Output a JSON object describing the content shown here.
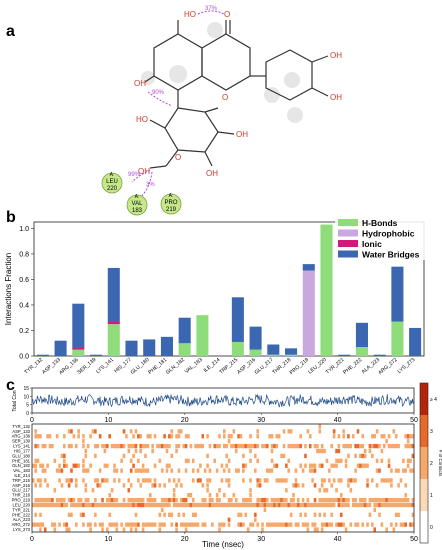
{
  "panel_labels": {
    "a": "a",
    "b": "b",
    "c": "c"
  },
  "molecule": {
    "atoms": {
      "ho_top": "HO",
      "o_top": "O",
      "oh_left": "OH",
      "ring_o": "O",
      "oh_right_top": "OH",
      "oh_right_mid": "OH",
      "ho_sugar": "HO",
      "o_sugar": "O",
      "oh_sugar1": "OH",
      "oh_sugar2": "OH",
      "oh_ch2": "OH"
    },
    "hbond_labels": {
      "intramolecular_top": "37%",
      "intramolecular_left": "90%",
      "to_leu": "99%",
      "to_val": "3%"
    },
    "residues": [
      {
        "chain": "A:",
        "name": "LEU",
        "num": "220"
      },
      {
        "chain": "A:",
        "name": "VAL",
        "num": "183"
      },
      {
        "chain": "A:",
        "name": "PRO",
        "num": "219"
      }
    ]
  },
  "chart_data": [
    {
      "type": "bar",
      "stacked": true,
      "ylabel": "Interactions Fraction",
      "ylim": [
        0,
        1.05
      ],
      "yticks": [
        "0.0",
        "0.2",
        "0.4",
        "0.6",
        "0.8",
        "1.0"
      ],
      "categories": [
        "TYR_132",
        "ASP_133",
        "ARG_136",
        "SER_139",
        "LYS_141",
        "HIS_177",
        "GLU_180",
        "PHE_181",
        "GLN_182",
        "VAL_183",
        "ILE_214",
        "TRP_215",
        "ASP_216",
        "GLU_217",
        "THR_218",
        "PRO_219",
        "LEU_220",
        "TYR_221",
        "PHE_222",
        "ALA_223",
        "ARG_272",
        "LYS_273"
      ],
      "legend_position": "top-right",
      "series": [
        {
          "name": "H-Bonds",
          "color": "#8fdc7a",
          "values": [
            0,
            0,
            0.05,
            0,
            0.25,
            0,
            0,
            0,
            0.1,
            0.32,
            0,
            0.11,
            0.05,
            0.01,
            0.01,
            0,
            1.03,
            0,
            0.07,
            0,
            0.27,
            0
          ]
        },
        {
          "name": "Hydrophobic",
          "color": "#c9a8e0",
          "values": [
            0,
            0,
            0,
            0,
            0,
            0,
            0,
            0,
            0,
            0,
            0,
            0,
            0,
            0,
            0,
            0.67,
            0,
            0,
            0,
            0,
            0,
            0
          ]
        },
        {
          "name": "Ionic",
          "color": "#d6187a",
          "values": [
            0,
            0,
            0.02,
            0,
            0.02,
            0,
            0,
            0,
            0,
            0,
            0,
            0,
            0,
            0,
            0,
            0,
            0,
            0,
            0,
            0,
            0,
            0
          ]
        },
        {
          "name": "Water Bridges",
          "color": "#3b66b0",
          "values": [
            0.01,
            0.12,
            0.34,
            0.01,
            0.42,
            0.12,
            0.13,
            0.15,
            0.2,
            0,
            0,
            0.35,
            0.18,
            0.08,
            0.05,
            0.05,
            0,
            0.01,
            0.19,
            0.01,
            0.43,
            0.22
          ]
        }
      ]
    },
    {
      "type": "line",
      "ylabel": "Total Con",
      "xlim": [
        0,
        50
      ],
      "ylim": [
        0,
        15
      ],
      "yticks": [
        "0",
        "5",
        "10",
        "15"
      ],
      "xticks": [
        "0",
        "10",
        "20",
        "30",
        "40",
        "50"
      ],
      "mean_level": 7.5,
      "color": "#1f4a86"
    },
    {
      "type": "heatmap",
      "xlabel": "Time (nsec)",
      "xticks": [
        "0",
        "10",
        "20",
        "30",
        "40",
        "50"
      ],
      "rows": [
        "TYR_132",
        "ASP_133",
        "ARG_136",
        "SER_139",
        "LYS_141",
        "HIS_177",
        "GLU_180",
        "PHE_181",
        "GLN_182",
        "VAL_183",
        "ILE_214",
        "TRP_215",
        "ASP_216",
        "GLU_217",
        "THR_218",
        "PRO_219",
        "LEU_220",
        "TYR_221",
        "PHE_222",
        "ALA_223",
        "ARG_272",
        "LYS_273"
      ],
      "row_occupancy": [
        0.02,
        0.13,
        0.37,
        0.02,
        0.65,
        0.12,
        0.13,
        0.15,
        0.28,
        0.3,
        0.01,
        0.43,
        0.22,
        0.09,
        0.06,
        0.7,
        0.98,
        0.02,
        0.24,
        0.01,
        0.66,
        0.22
      ],
      "colorbar": {
        "ticks": [
          "0",
          "1",
          "2",
          "3",
          "≥ 4"
        ],
        "label": "# of Contacts",
        "colors": [
          "#ffffff",
          "#fbd9b8",
          "#f6a86a",
          "#e86a2a",
          "#b3250a"
        ]
      }
    }
  ]
}
